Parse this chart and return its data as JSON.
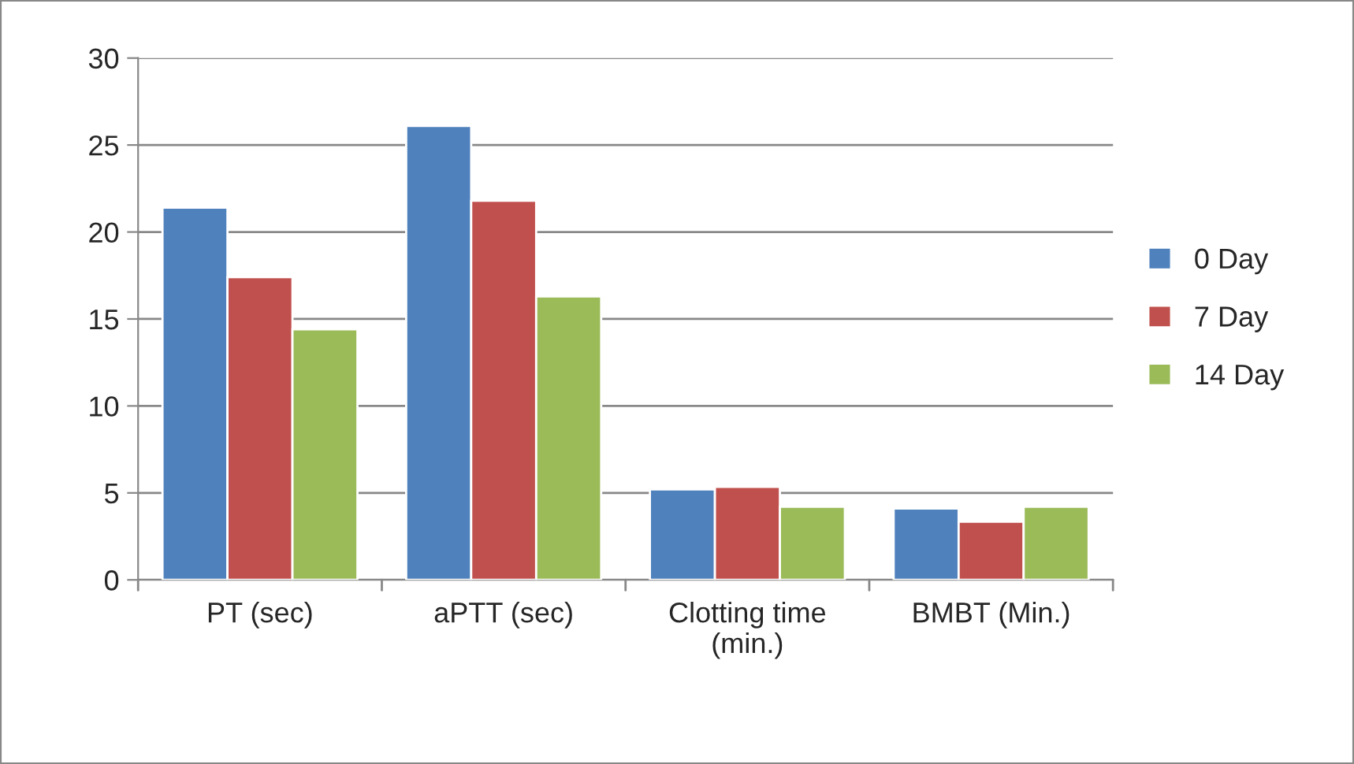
{
  "chart_data": {
    "type": "bar",
    "categories": [
      "PT (sec)",
      "aPTT (sec)",
      "Clotting time\n(min.)",
      "BMBT (Min.)"
    ],
    "series": [
      {
        "name": "0 Day",
        "color": "#4f81bd",
        "values": [
          21.4,
          26.1,
          5.2,
          4.1
        ]
      },
      {
        "name": "7 Day",
        "color": "#c0504d",
        "values": [
          17.4,
          21.8,
          5.35,
          3.35
        ]
      },
      {
        "name": "14 Day",
        "color": "#9bbb59",
        "values": [
          14.4,
          16.3,
          4.2,
          4.2
        ]
      }
    ],
    "ylim": [
      0,
      30
    ],
    "yticks": [
      0,
      5,
      10,
      15,
      20,
      25,
      30
    ],
    "grid": "y",
    "legend": "right"
  }
}
